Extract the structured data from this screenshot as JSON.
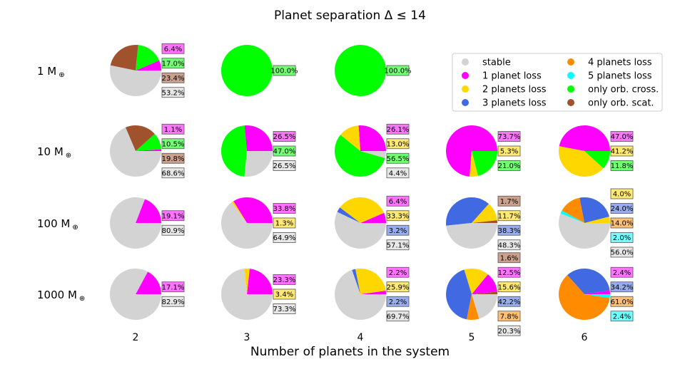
{
  "chart_data": {
    "type": "pie",
    "title": "Planet separation Δ ≤  14",
    "xlabel": "Number of planets in the system",
    "x_ticks": [
      "2",
      "3",
      "4",
      "5",
      "6"
    ],
    "row_labels": [
      "1 M",
      "10 M",
      "100 M",
      "1000 M"
    ],
    "row_label_symbol": "⊕",
    "categories": [
      {
        "key": "stable",
        "label": "stable",
        "color": "#d3d3d3"
      },
      {
        "key": "p1",
        "label": "1 planet loss",
        "color": "#ff00ff"
      },
      {
        "key": "p2",
        "label": "2 planets loss",
        "color": "#ffd700"
      },
      {
        "key": "p3",
        "label": "3 planets loss",
        "color": "#4169e1"
      },
      {
        "key": "p4",
        "label": "4 planets loss",
        "color": "#ff8c00"
      },
      {
        "key": "p5",
        "label": "5 planets loss",
        "color": "#00ffff"
      },
      {
        "key": "cross",
        "label": "only orb. cross.",
        "color": "#00ff00"
      },
      {
        "key": "scat",
        "label": "only orb. scat.",
        "color": "#a0522d"
      }
    ],
    "pies": [
      {
        "mass": "1 M",
        "n": 2,
        "slices": [
          {
            "cat": "p1",
            "value": 6.4
          },
          {
            "cat": "cross",
            "value": 17.0
          },
          {
            "cat": "scat",
            "value": 23.4
          },
          {
            "cat": "stable",
            "value": 53.2
          }
        ],
        "labels": [
          {
            "cat": "p1",
            "text": "6.4%"
          },
          {
            "cat": "cross",
            "text": "17.0%"
          },
          {
            "cat": "scat",
            "text": "23.4%"
          },
          {
            "cat": "stable",
            "text": "53.2%"
          }
        ]
      },
      {
        "mass": "1 M",
        "n": 3,
        "slices": [
          {
            "cat": "cross",
            "value": 100.0
          }
        ],
        "labels": [
          {
            "cat": "cross",
            "text": "100.0%"
          }
        ]
      },
      {
        "mass": "1 M",
        "n": 4,
        "slices": [
          {
            "cat": "cross",
            "value": 100.0
          }
        ],
        "labels": [
          {
            "cat": "cross",
            "text": "100.0%"
          }
        ]
      },
      {
        "mass": "10 M",
        "n": 2,
        "slices": [
          {
            "cat": "p1",
            "value": 1.1
          },
          {
            "cat": "cross",
            "value": 10.5
          },
          {
            "cat": "scat",
            "value": 19.8
          },
          {
            "cat": "stable",
            "value": 68.6
          }
        ],
        "labels": [
          {
            "cat": "p1",
            "text": "1.1%"
          },
          {
            "cat": "cross",
            "text": "10.5%"
          },
          {
            "cat": "scat",
            "text": "19.8%"
          },
          {
            "cat": "stable",
            "text": "68.6%"
          }
        ]
      },
      {
        "mass": "10 M",
        "n": 3,
        "slices": [
          {
            "cat": "p1",
            "value": 26.5
          },
          {
            "cat": "cross",
            "value": 47.0
          },
          {
            "cat": "stable",
            "value": 26.5
          }
        ],
        "labels": [
          {
            "cat": "p1",
            "text": "26.5%"
          },
          {
            "cat": "cross",
            "text": "47.0%"
          },
          {
            "cat": "stable",
            "text": "26.5%"
          }
        ]
      },
      {
        "mass": "10 M",
        "n": 4,
        "slices": [
          {
            "cat": "p1",
            "value": 26.1
          },
          {
            "cat": "p2",
            "value": 13.0
          },
          {
            "cat": "cross",
            "value": 56.5
          },
          {
            "cat": "stable",
            "value": 4.4
          }
        ],
        "labels": [
          {
            "cat": "p1",
            "text": "26.1%"
          },
          {
            "cat": "p2",
            "text": "13.0%"
          },
          {
            "cat": "cross",
            "text": "56.5%"
          },
          {
            "cat": "stable",
            "text": "4.4%"
          }
        ]
      },
      {
        "mass": "10 M",
        "n": 5,
        "slices": [
          {
            "cat": "p1",
            "value": 73.7
          },
          {
            "cat": "p2",
            "value": 5.3
          },
          {
            "cat": "cross",
            "value": 21.0
          }
        ],
        "labels": [
          {
            "cat": "p1",
            "text": "73.7%"
          },
          {
            "cat": "p2",
            "text": "5.3%"
          },
          {
            "cat": "cross",
            "text": "21.0%"
          }
        ]
      },
      {
        "mass": "10 M",
        "n": 6,
        "slices": [
          {
            "cat": "p1",
            "value": 47.0
          },
          {
            "cat": "p2",
            "value": 41.2
          },
          {
            "cat": "cross",
            "value": 11.8
          }
        ],
        "labels": [
          {
            "cat": "p1",
            "text": "47.0%"
          },
          {
            "cat": "p2",
            "text": "41.2%"
          },
          {
            "cat": "cross",
            "text": "11.8%"
          }
        ]
      },
      {
        "mass": "100 M",
        "n": 2,
        "slices": [
          {
            "cat": "p1",
            "value": 19.1
          },
          {
            "cat": "stable",
            "value": 80.9
          }
        ],
        "labels": [
          {
            "cat": "p1",
            "text": "19.1%"
          },
          {
            "cat": "stable",
            "text": "80.9%"
          }
        ]
      },
      {
        "mass": "100 M",
        "n": 3,
        "slices": [
          {
            "cat": "p1",
            "value": 33.8
          },
          {
            "cat": "p2",
            "value": 1.3
          },
          {
            "cat": "stable",
            "value": 64.9
          }
        ],
        "labels": [
          {
            "cat": "p1",
            "text": "33.8%"
          },
          {
            "cat": "p2",
            "text": "1.3%"
          },
          {
            "cat": "stable",
            "text": "64.9%"
          }
        ]
      },
      {
        "mass": "100 M",
        "n": 4,
        "slices": [
          {
            "cat": "p1",
            "value": 6.4
          },
          {
            "cat": "p2",
            "value": 33.3
          },
          {
            "cat": "p3",
            "value": 3.2
          },
          {
            "cat": "stable",
            "value": 57.1
          }
        ],
        "labels": [
          {
            "cat": "p1",
            "text": "6.4%"
          },
          {
            "cat": "p2",
            "text": "33.3%"
          },
          {
            "cat": "p3",
            "text": "3.2%"
          },
          {
            "cat": "stable",
            "text": "57.1%"
          }
        ]
      },
      {
        "mass": "100 M",
        "n": 5,
        "slices": [
          {
            "cat": "scat",
            "value": 1.7
          },
          {
            "cat": "p2",
            "value": 11.7
          },
          {
            "cat": "p3",
            "value": 38.3
          },
          {
            "cat": "stable",
            "value": 48.3
          }
        ],
        "labels": [
          {
            "cat": "scat",
            "text": "1.7%"
          },
          {
            "cat": "p2",
            "text": "11.7%"
          },
          {
            "cat": "p3",
            "text": "38.3%"
          },
          {
            "cat": "stable",
            "text": "48.3%"
          }
        ]
      },
      {
        "mass": "100 M",
        "n": 6,
        "slices": [
          {
            "cat": "p2",
            "value": 4.0
          },
          {
            "cat": "p3",
            "value": 24.0
          },
          {
            "cat": "p4",
            "value": 14.0
          },
          {
            "cat": "p5",
            "value": 2.0
          },
          {
            "cat": "stable",
            "value": 56.0
          }
        ],
        "labels": [
          {
            "cat": "p2",
            "text": "4.0%"
          },
          {
            "cat": "p3",
            "text": "24.0%"
          },
          {
            "cat": "p4",
            "text": "14.0%"
          },
          {
            "cat": "p5",
            "text": "2.0%"
          },
          {
            "cat": "stable",
            "text": "56.0%"
          }
        ]
      },
      {
        "mass": "1000 M",
        "n": 2,
        "slices": [
          {
            "cat": "p1",
            "value": 17.1
          },
          {
            "cat": "stable",
            "value": 82.9
          }
        ],
        "labels": [
          {
            "cat": "p1",
            "text": "17.1%"
          },
          {
            "cat": "stable",
            "text": "82.9%"
          }
        ]
      },
      {
        "mass": "1000 M",
        "n": 3,
        "slices": [
          {
            "cat": "p1",
            "value": 23.3
          },
          {
            "cat": "p2",
            "value": 3.4
          },
          {
            "cat": "stable",
            "value": 73.3
          }
        ],
        "labels": [
          {
            "cat": "p1",
            "text": "23.3%"
          },
          {
            "cat": "p2",
            "text": "3.4%"
          },
          {
            "cat": "stable",
            "text": "73.3%"
          }
        ]
      },
      {
        "mass": "1000 M",
        "n": 4,
        "slices": [
          {
            "cat": "p1",
            "value": 2.2
          },
          {
            "cat": "p2",
            "value": 25.9
          },
          {
            "cat": "p3",
            "value": 2.2
          },
          {
            "cat": "stable",
            "value": 69.7
          }
        ],
        "labels": [
          {
            "cat": "p1",
            "text": "2.2%"
          },
          {
            "cat": "p2",
            "text": "25.9%"
          },
          {
            "cat": "p3",
            "text": "2.2%"
          },
          {
            "cat": "stable",
            "text": "69.7%"
          }
        ]
      },
      {
        "mass": "1000 M",
        "n": 5,
        "slices": [
          {
            "cat": "scat",
            "value": 1.6
          },
          {
            "cat": "p1",
            "value": 12.5
          },
          {
            "cat": "p2",
            "value": 15.6
          },
          {
            "cat": "p3",
            "value": 42.2
          },
          {
            "cat": "p4",
            "value": 7.8
          },
          {
            "cat": "stable",
            "value": 20.3
          }
        ],
        "labels": [
          {
            "cat": "scat",
            "text": "1.6%"
          },
          {
            "cat": "p1",
            "text": "12.5%"
          },
          {
            "cat": "p2",
            "text": "15.6%"
          },
          {
            "cat": "p3",
            "text": "42.2%"
          },
          {
            "cat": "p4",
            "text": "7.8%"
          },
          {
            "cat": "stable",
            "text": "20.3%"
          }
        ]
      },
      {
        "mass": "1000 M",
        "n": 6,
        "slices": [
          {
            "cat": "p1",
            "value": 2.4
          },
          {
            "cat": "p3",
            "value": 34.2
          },
          {
            "cat": "p4",
            "value": 61.0
          },
          {
            "cat": "p5",
            "value": 2.4
          }
        ],
        "labels": [
          {
            "cat": "p1",
            "text": "2.4%"
          },
          {
            "cat": "p3",
            "text": "34.2%"
          },
          {
            "cat": "p4",
            "text": "61.0%"
          },
          {
            "cat": "p5",
            "text": "2.4%"
          }
        ]
      }
    ]
  }
}
